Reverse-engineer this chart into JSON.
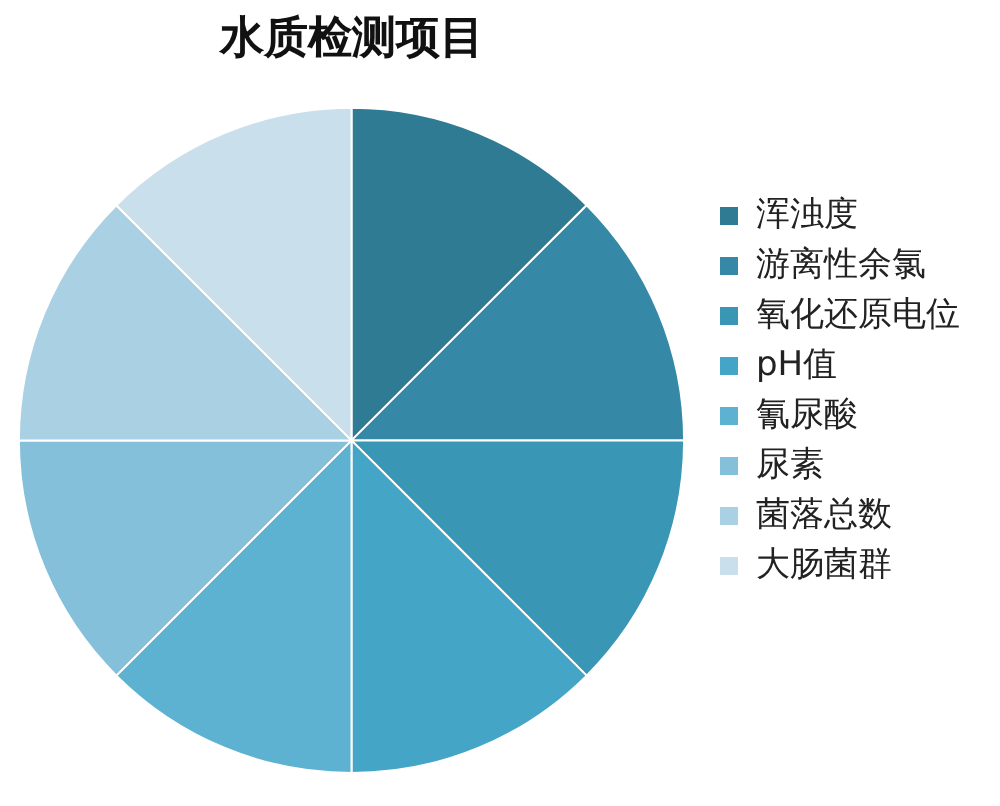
{
  "chart_data": {
    "type": "pie",
    "title": "水质检测项目",
    "categories": [
      "浑浊度",
      "游离性余氯",
      "氧化还原电位",
      "pH值",
      "氰尿酸",
      "尿素",
      "菌落总数",
      "大肠菌群"
    ],
    "values": [
      12.5,
      12.5,
      12.5,
      12.5,
      12.5,
      12.5,
      12.5,
      12.5
    ],
    "colors": [
      "#2f7b94",
      "#3589a6",
      "#3a96b5",
      "#44a5c7",
      "#5db2d2",
      "#84c0d9",
      "#a9d0e3",
      "#c9e0ec"
    ],
    "legend": "right"
  }
}
